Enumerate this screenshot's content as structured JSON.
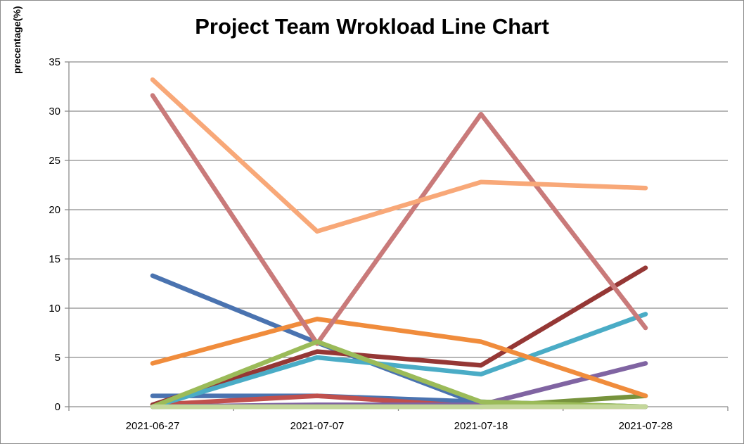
{
  "chart_data": {
    "type": "line",
    "title": "Project Team Wrokload Line Chart",
    "xlabel": "",
    "ylabel": "precentage(%)",
    "ylim": [
      0,
      35
    ],
    "yticks": [
      "0",
      "5",
      "10",
      "15",
      "20",
      "25",
      "30",
      "35"
    ],
    "categories": [
      "2021-06-27",
      "2021-07-07",
      "2021-07-18",
      "2021-07-28"
    ],
    "grid": true,
    "legend": "none",
    "series": [
      {
        "color": "#4a73b0",
        "values": [
          13.3,
          6.5,
          0.2,
          0.0
        ]
      },
      {
        "color": "#4a73b0",
        "values": [
          1.1,
          1.1,
          0.5,
          0.0
        ]
      },
      {
        "color": "#c0504d",
        "values": [
          0.2,
          1.1,
          0.0,
          0.0
        ]
      },
      {
        "color": "#953735",
        "values": [
          0.2,
          5.6,
          4.2,
          14.1
        ]
      },
      {
        "color": "#8064a2",
        "values": [
          0.0,
          0.2,
          0.2,
          4.4
        ]
      },
      {
        "color": "#77933c",
        "values": [
          0.0,
          0.0,
          0.0,
          1.1
        ]
      },
      {
        "color": "#4aacc6",
        "values": [
          0.0,
          5.0,
          3.3,
          9.4
        ]
      },
      {
        "color": "#f08c3c",
        "values": [
          4.4,
          8.9,
          6.6,
          1.1
        ]
      },
      {
        "color": "#c97a7a",
        "values": [
          31.6,
          6.4,
          29.7,
          8.0
        ]
      },
      {
        "color": "#f8a878",
        "values": [
          33.2,
          17.8,
          22.8,
          22.2
        ]
      },
      {
        "color": "#9bbb59",
        "values": [
          0.0,
          6.6,
          0.5,
          0.0
        ]
      },
      {
        "color": "#c4d79b",
        "values": [
          0.0,
          0.0,
          0.0,
          0.0
        ]
      }
    ]
  }
}
